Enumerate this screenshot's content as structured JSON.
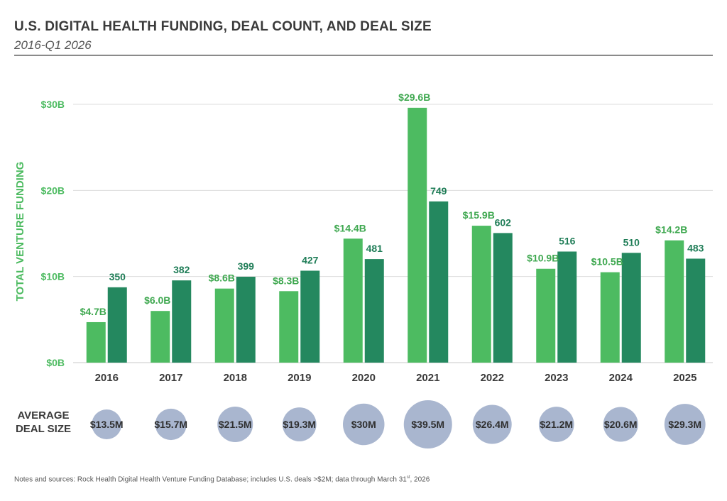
{
  "title": "U.S. DIGITAL HEALTH FUNDING, DEAL COUNT, AND DEAL SIZE",
  "subtitle": "2016-Q1 2026",
  "avg_deal_size_label": "AVERAGE DEAL SIZE",
  "notes": {
    "prefix": "Notes and sources: Rock Health Digital Health Venture Funding Database; includes U.S. deals >$2M; data through March 31",
    "superscript": "st",
    "suffix": ", 2026"
  },
  "colors": {
    "funding_bar": "#4dbb61",
    "deal_count_bar": "#24885f",
    "funding_label": "#3fa850",
    "deal_count_label": "#1f7d57",
    "bubble": "#a9b6cf",
    "grid": "#dcdcdc",
    "axis_label": "#4dbb61",
    "text_dark": "#3a3a3a"
  },
  "chart_data": {
    "type": "bar",
    "title": "U.S. DIGITAL HEALTH FUNDING, DEAL COUNT, AND DEAL SIZE",
    "subtitle": "2016-Q1 2026",
    "ylabel": "TOTAL VENTURE FUNDING",
    "ylim": [
      0,
      30
    ],
    "yticks": [
      0,
      10,
      20,
      30
    ],
    "ytick_labels": [
      "$0B",
      "$10B",
      "$20B",
      "$30B"
    ],
    "grid": true,
    "categories": [
      "2016",
      "2017",
      "2018",
      "2019",
      "2020",
      "2021",
      "2022",
      "2023",
      "2024",
      "2025"
    ],
    "series": [
      {
        "name": "Total venture funding ($B)",
        "values": [
          4.7,
          6.0,
          8.6,
          8.3,
          14.4,
          29.6,
          15.9,
          10.9,
          10.5,
          14.2
        ],
        "labels": [
          "$4.7B",
          "$6.0B",
          "$8.6B",
          "$8.3B",
          "$14.4B",
          "$29.6B",
          "$15.9B",
          "$10.9B",
          "$10.5B",
          "$14.2B"
        ]
      },
      {
        "name": "Deal count",
        "values": [
          350,
          382,
          399,
          427,
          481,
          749,
          602,
          516,
          510,
          483
        ],
        "labels": [
          "350",
          "382",
          "399",
          "427",
          "481",
          "749",
          "602",
          "516",
          "510",
          "483"
        ],
        "scale_max": 1200
      }
    ],
    "average_deal_size": {
      "label": "AVERAGE DEAL SIZE",
      "values": [
        13.5,
        15.7,
        21.5,
        19.3,
        30,
        39.5,
        26.4,
        21.2,
        20.6,
        29.3
      ],
      "labels": [
        "$13.5M",
        "$15.7M",
        "$21.5M",
        "$19.3M",
        "$30M",
        "$39.5M",
        "$26.4M",
        "$21.2M",
        "$20.6M",
        "$29.3M"
      ]
    }
  }
}
